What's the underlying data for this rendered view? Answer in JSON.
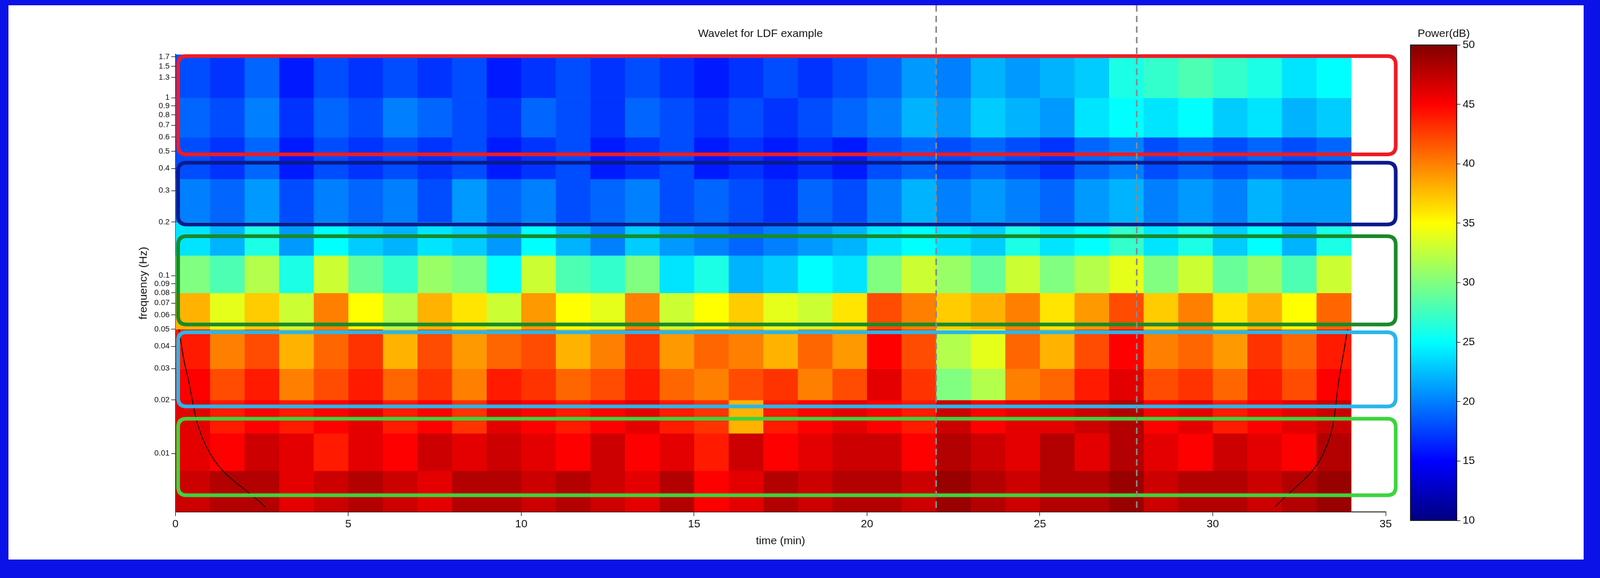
{
  "chart_data": {
    "type": "heatmap",
    "title": "Wavelet for LDF example",
    "x_label": "time (min)",
    "y_label": "frequency (Hz)",
    "log": "y",
    "grid": false,
    "xlim": [
      0,
      35
    ],
    "xticks": [
      0,
      5,
      10,
      15,
      20,
      25,
      30,
      35
    ],
    "ylim": [
      0.0047,
      1.75
    ],
    "yticks": [
      0.01,
      0.02,
      0.03,
      0.04,
      0.05,
      0.06,
      0.07,
      0.08,
      0.09,
      0.1,
      0.2,
      0.3,
      0.4,
      0.5,
      0.6,
      0.7,
      0.8,
      0.9,
      1,
      1.3,
      1.5,
      1.7
    ],
    "x_edges": [
      0,
      1,
      2,
      3,
      4,
      5,
      6,
      7,
      8,
      9,
      10,
      11,
      12,
      13,
      14,
      15,
      16,
      17,
      18,
      19,
      20,
      21,
      22,
      23,
      24,
      25,
      26,
      27,
      28,
      29,
      30,
      31,
      32,
      33,
      34
    ],
    "y_edges": [
      0.0047,
      0.008,
      0.013,
      0.02,
      0.03,
      0.05,
      0.08,
      0.13,
      0.2,
      0.35,
      0.6,
      1.0,
      1.75
    ],
    "z": [
      [
        47,
        48,
        48,
        46,
        47,
        48,
        47,
        46,
        48,
        48,
        47,
        48,
        47,
        46,
        48,
        45,
        46,
        48,
        47,
        48,
        48,
        47,
        49,
        48,
        47,
        48,
        48,
        49,
        47,
        48,
        48,
        47,
        48,
        49
      ],
      [
        46,
        45,
        47,
        46,
        44,
        46,
        45,
        47,
        46,
        47,
        46,
        45,
        47,
        45,
        46,
        44,
        47,
        45,
        46,
        47,
        47,
        45,
        48,
        47,
        46,
        48,
        46,
        48,
        46,
        45,
        47,
        46,
        45,
        48
      ],
      [
        46,
        44,
        45,
        44,
        45,
        46,
        44,
        45,
        43,
        46,
        45,
        44,
        45,
        46,
        44,
        43,
        38,
        44,
        45,
        46,
        45,
        44,
        47,
        45,
        46,
        46,
        47,
        48,
        45,
        46,
        44,
        45,
        46,
        47
      ],
      [
        45,
        42,
        44,
        40,
        42,
        44,
        41,
        43,
        40,
        44,
        43,
        41,
        42,
        44,
        41,
        40,
        42,
        43,
        40,
        42,
        46,
        43,
        30,
        32,
        40,
        41,
        44,
        46,
        42,
        43,
        41,
        44,
        42,
        45
      ],
      [
        44,
        40,
        42,
        38,
        41,
        43,
        38,
        42,
        39,
        41,
        42,
        38,
        40,
        43,
        39,
        41,
        40,
        38,
        41,
        39,
        45,
        42,
        32,
        34,
        41,
        38,
        42,
        45,
        40,
        41,
        39,
        43,
        41,
        44
      ],
      [
        38,
        34,
        37,
        33,
        40,
        35,
        32,
        38,
        36,
        33,
        39,
        35,
        34,
        40,
        33,
        35,
        37,
        34,
        33,
        36,
        42,
        40,
        37,
        38,
        40,
        36,
        39,
        42,
        37,
        40,
        36,
        38,
        35,
        41
      ],
      [
        30,
        28,
        32,
        26,
        33,
        29,
        27,
        31,
        30,
        25,
        33,
        28,
        27,
        30,
        24,
        26,
        22,
        23,
        25,
        24,
        30,
        33,
        31,
        29,
        33,
        30,
        32,
        34,
        30,
        33,
        29,
        31,
        28,
        33
      ],
      [
        24,
        22,
        26,
        21,
        25,
        23,
        22,
        24,
        23,
        21,
        25,
        22,
        20,
        23,
        21,
        20,
        19,
        20,
        21,
        22,
        24,
        25,
        24,
        23,
        26,
        24,
        25,
        27,
        24,
        26,
        23,
        25,
        22,
        26
      ],
      [
        20,
        19,
        21,
        18,
        20,
        19,
        20,
        18,
        21,
        19,
        20,
        18,
        19,
        20,
        18,
        19,
        18,
        17,
        19,
        18,
        20,
        22,
        20,
        21,
        20,
        19,
        21,
        22,
        20,
        21,
        20,
        22,
        21,
        21
      ],
      [
        18,
        17,
        19,
        16,
        18,
        17,
        18,
        17,
        18,
        16,
        17,
        18,
        16,
        17,
        18,
        16,
        17,
        16,
        17,
        16,
        18,
        19,
        18,
        19,
        18,
        17,
        19,
        20,
        18,
        19,
        18,
        19,
        18,
        19
      ],
      [
        19,
        18,
        20,
        17,
        19,
        18,
        20,
        19,
        18,
        17,
        19,
        18,
        17,
        19,
        18,
        17,
        18,
        17,
        18,
        19,
        20,
        22,
        21,
        23,
        22,
        21,
        24,
        25,
        24,
        25,
        23,
        24,
        22,
        23
      ],
      [
        18,
        17,
        19,
        16,
        18,
        17,
        18,
        17,
        18,
        16,
        17,
        18,
        17,
        18,
        17,
        16,
        17,
        18,
        17,
        18,
        19,
        21,
        20,
        22,
        21,
        22,
        23,
        26,
        27,
        28,
        27,
        26,
        24,
        25
      ]
    ],
    "colorbar": {
      "label": "Power(dB)",
      "range": [
        10,
        50
      ],
      "ticks": [
        10,
        15,
        20,
        25,
        30,
        35,
        40,
        45,
        50
      ]
    },
    "bands": [
      {
        "range": [
          0.47,
          1.75
        ],
        "color": "#ee1c24"
      },
      {
        "range": [
          0.19,
          0.44
        ],
        "color": "#0a1a8c"
      },
      {
        "range": [
          0.052,
          0.17
        ],
        "color": "#1a8a2a"
      },
      {
        "range": [
          0.018,
          0.049
        ],
        "color": "#29b6ea"
      },
      {
        "range": [
          0.0057,
          0.016
        ],
        "color": "#3dd43d"
      }
    ],
    "vlines": [
      22,
      27.8
    ],
    "coi": [
      {
        "x": [
          0.1,
          0.3,
          1,
          2.6
        ],
        "y": [
          0.05,
          0.03,
          0.01,
          0.005
        ]
      },
      {
        "x": [
          33.9,
          33.7,
          33.2,
          31.8
        ],
        "y": [
          0.05,
          0.03,
          0.01,
          0.005
        ]
      }
    ]
  }
}
